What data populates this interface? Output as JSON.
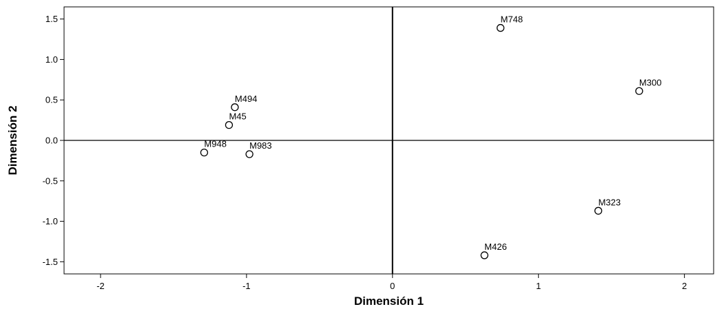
{
  "chart_data": {
    "type": "scatter",
    "title": "",
    "xlabel": "Dimensión 1",
    "ylabel": "Dimensión 2",
    "xlim": [
      -2.25,
      2.2
    ],
    "ylim": [
      -1.65,
      1.65
    ],
    "xticks": [
      -2,
      -1,
      0,
      1,
      2
    ],
    "yticks": [
      1.5,
      1.0,
      0.5,
      0.0,
      -0.5,
      -1.0,
      -1.5
    ],
    "xtick_labels": [
      "-2",
      "-1",
      "0",
      "1",
      "2"
    ],
    "ytick_labels": [
      "1.5",
      "1.0",
      "0.5",
      "0.0",
      "-0.5",
      "-1.0",
      "-1.5"
    ],
    "reference_lines": {
      "x": 0,
      "y": 0
    },
    "grid": false,
    "legend": "none",
    "marker": "open-circle",
    "points": [
      {
        "label": "M748",
        "x": 0.74,
        "y": 1.39
      },
      {
        "label": "M300",
        "x": 1.69,
        "y": 0.61
      },
      {
        "label": "M494",
        "x": -1.08,
        "y": 0.41
      },
      {
        "label": "M45",
        "x": -1.12,
        "y": 0.19
      },
      {
        "label": "M948",
        "x": -1.29,
        "y": -0.15
      },
      {
        "label": "M983",
        "x": -0.98,
        "y": -0.17
      },
      {
        "label": "M323",
        "x": 1.41,
        "y": -0.87
      },
      {
        "label": "M426",
        "x": 0.63,
        "y": -1.42
      }
    ]
  }
}
